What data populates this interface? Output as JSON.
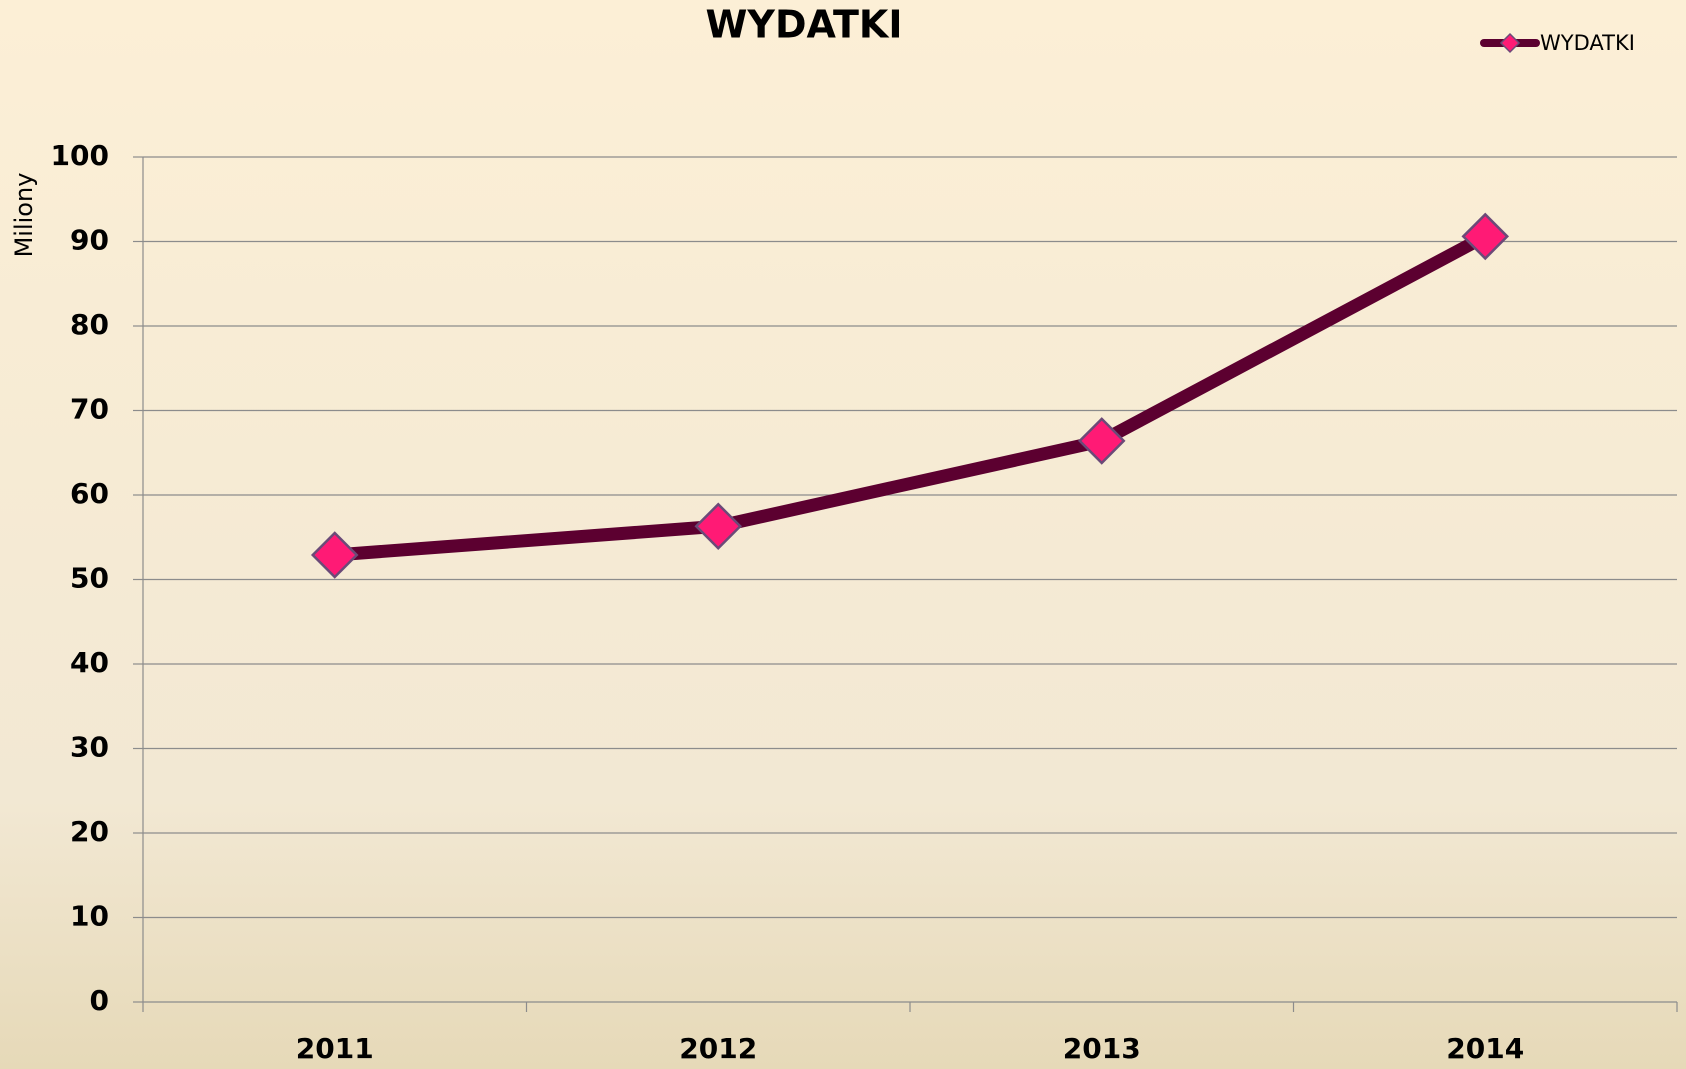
{
  "chart_data": {
    "type": "line",
    "title": "WYDATKI",
    "y_label": "Miliony",
    "categories": [
      "2011",
      "2012",
      "2013",
      "2014"
    ],
    "series": [
      {
        "name": "WYDATKI",
        "color": "#5c0030",
        "marker_color": "#ff1a75",
        "values": [
          52.9,
          56.3,
          66.4,
          90.6
        ]
      }
    ],
    "ylim": [
      0,
      100
    ],
    "yticks": [
      0,
      10,
      20,
      30,
      40,
      50,
      60,
      70,
      80,
      90,
      100
    ],
    "grid": true,
    "legend": "top-right"
  }
}
